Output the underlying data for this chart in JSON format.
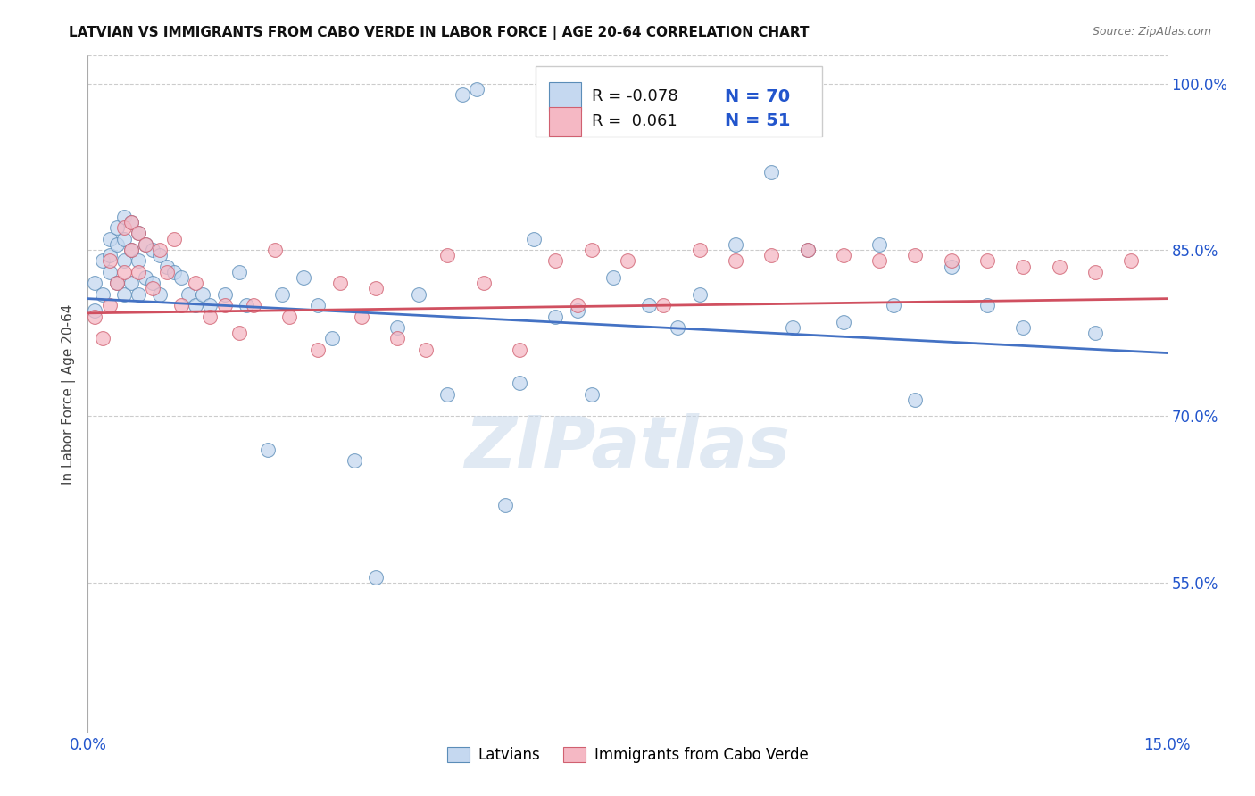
{
  "title": "LATVIAN VS IMMIGRANTS FROM CABO VERDE IN LABOR FORCE | AGE 20-64 CORRELATION CHART",
  "source": "Source: ZipAtlas.com",
  "ylabel_label": "In Labor Force | Age 20-64",
  "right_yticks": [
    1.0,
    0.85,
    0.7,
    0.55
  ],
  "right_ytick_labels": [
    "100.0%",
    "85.0%",
    "70.0%",
    "55.0%"
  ],
  "xmin": 0.0,
  "xmax": 0.15,
  "ymin": 0.415,
  "ymax": 1.025,
  "legend_labels": [
    "Latvians",
    "Immigrants from Cabo Verde"
  ],
  "R_latvian": -0.078,
  "N_latvian": 70,
  "R_cabo": 0.061,
  "N_cabo": 51,
  "blue_fill": "#C5D8F0",
  "blue_edge": "#5B8DB8",
  "pink_fill": "#F5B8C4",
  "pink_edge": "#D06070",
  "line_blue": "#4472C4",
  "line_pink": "#D05060",
  "watermark": "ZIPatlas",
  "lat_line_y0": 0.806,
  "lat_line_y1": 0.757,
  "cabo_line_y0": 0.793,
  "cabo_line_y1": 0.806,
  "latvian_x": [
    0.001,
    0.001,
    0.002,
    0.002,
    0.003,
    0.003,
    0.003,
    0.004,
    0.004,
    0.004,
    0.005,
    0.005,
    0.005,
    0.005,
    0.006,
    0.006,
    0.006,
    0.007,
    0.007,
    0.007,
    0.008,
    0.008,
    0.009,
    0.009,
    0.01,
    0.01,
    0.011,
    0.012,
    0.013,
    0.014,
    0.015,
    0.016,
    0.017,
    0.019,
    0.021,
    0.022,
    0.025,
    0.027,
    0.03,
    0.032,
    0.034,
    0.037,
    0.04,
    0.043,
    0.046,
    0.05,
    0.052,
    0.054,
    0.058,
    0.06,
    0.062,
    0.065,
    0.068,
    0.07,
    0.073,
    0.078,
    0.082,
    0.085,
    0.09,
    0.095,
    0.098,
    0.1,
    0.105,
    0.11,
    0.112,
    0.115,
    0.12,
    0.125,
    0.13,
    0.14
  ],
  "latvian_y": [
    0.82,
    0.795,
    0.84,
    0.81,
    0.86,
    0.845,
    0.83,
    0.87,
    0.855,
    0.82,
    0.88,
    0.86,
    0.84,
    0.81,
    0.875,
    0.85,
    0.82,
    0.865,
    0.84,
    0.81,
    0.855,
    0.825,
    0.85,
    0.82,
    0.845,
    0.81,
    0.835,
    0.83,
    0.825,
    0.81,
    0.8,
    0.81,
    0.8,
    0.81,
    0.83,
    0.8,
    0.67,
    0.81,
    0.825,
    0.8,
    0.77,
    0.66,
    0.555,
    0.78,
    0.81,
    0.72,
    0.99,
    0.995,
    0.62,
    0.73,
    0.86,
    0.79,
    0.795,
    0.72,
    0.825,
    0.8,
    0.78,
    0.81,
    0.855,
    0.92,
    0.78,
    0.85,
    0.785,
    0.855,
    0.8,
    0.715,
    0.835,
    0.8,
    0.78,
    0.775
  ],
  "cabo_x": [
    0.001,
    0.002,
    0.003,
    0.003,
    0.004,
    0.005,
    0.005,
    0.006,
    0.006,
    0.007,
    0.007,
    0.008,
    0.009,
    0.01,
    0.011,
    0.012,
    0.013,
    0.015,
    0.017,
    0.019,
    0.021,
    0.023,
    0.026,
    0.028,
    0.032,
    0.035,
    0.038,
    0.04,
    0.043,
    0.047,
    0.05,
    0.055,
    0.06,
    0.065,
    0.068,
    0.07,
    0.075,
    0.08,
    0.085,
    0.09,
    0.095,
    0.1,
    0.105,
    0.11,
    0.115,
    0.12,
    0.125,
    0.13,
    0.135,
    0.14,
    0.145
  ],
  "cabo_y": [
    0.79,
    0.77,
    0.84,
    0.8,
    0.82,
    0.87,
    0.83,
    0.875,
    0.85,
    0.865,
    0.83,
    0.855,
    0.815,
    0.85,
    0.83,
    0.86,
    0.8,
    0.82,
    0.79,
    0.8,
    0.775,
    0.8,
    0.85,
    0.79,
    0.76,
    0.82,
    0.79,
    0.815,
    0.77,
    0.76,
    0.845,
    0.82,
    0.76,
    0.84,
    0.8,
    0.85,
    0.84,
    0.8,
    0.85,
    0.84,
    0.845,
    0.85,
    0.845,
    0.84,
    0.845,
    0.84,
    0.84,
    0.835,
    0.835,
    0.83,
    0.84
  ]
}
